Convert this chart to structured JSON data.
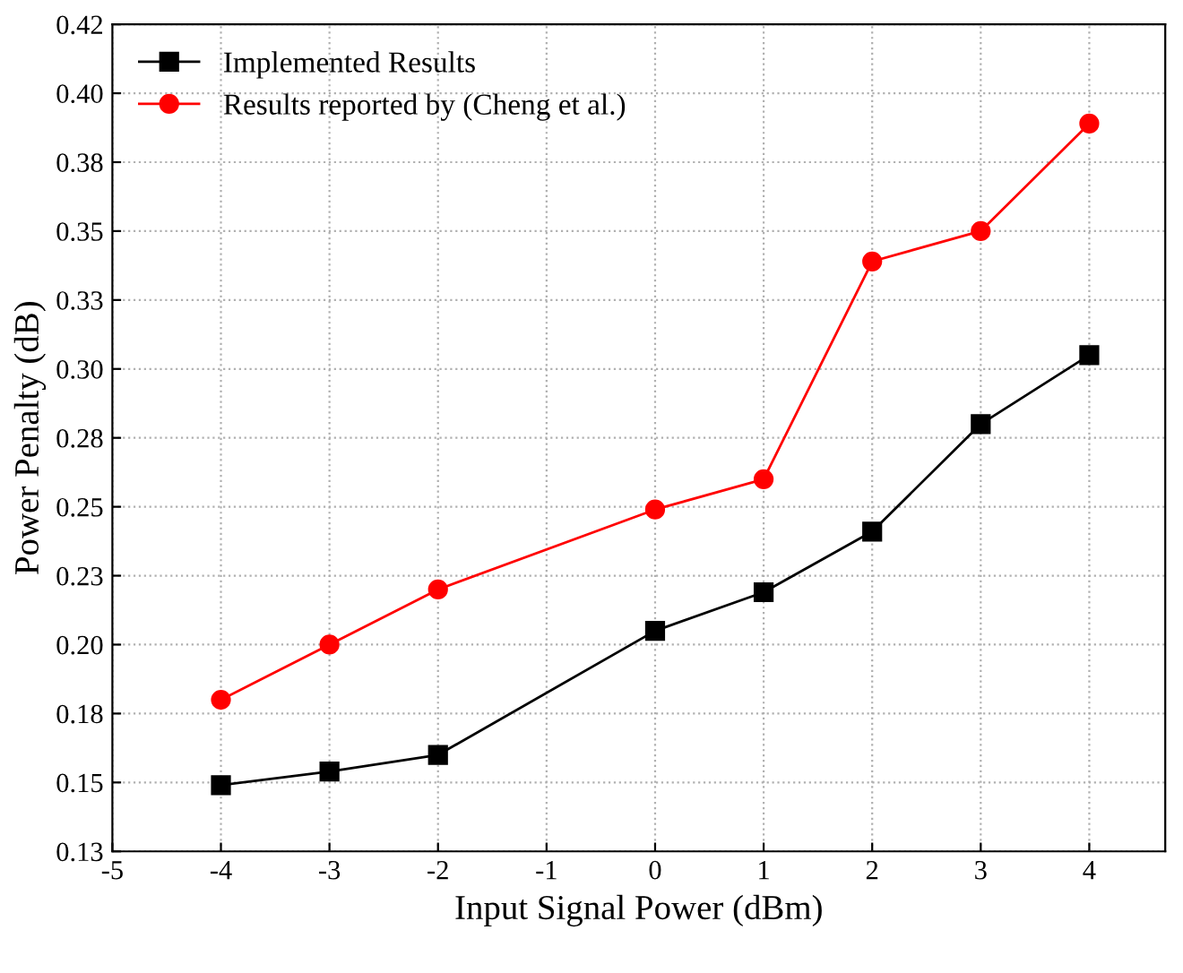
{
  "chart_data": {
    "type": "line",
    "xlabel": "Input Signal Power (dBm)",
    "ylabel": "Power Penalty (dB)",
    "x": [
      -4,
      -3,
      -2,
      0,
      1,
      2,
      3,
      4
    ],
    "series": [
      {
        "name": "Implemented Results",
        "color": "#000000",
        "marker": "square",
        "values": [
          0.149,
          0.154,
          0.16,
          0.205,
          0.219,
          0.241,
          0.28,
          0.305
        ]
      },
      {
        "name": "Results reported by (Cheng et al.)",
        "color": "#ff0000",
        "marker": "circle",
        "values": [
          0.18,
          0.2,
          0.22,
          0.249,
          0.26,
          0.339,
          0.35,
          0.389
        ]
      }
    ],
    "xlim": [
      -5,
      4.7
    ],
    "xticks": [
      -5,
      -4,
      -3,
      -2,
      -1,
      0,
      1,
      2,
      3,
      4
    ],
    "ylim": [
      0.125,
      0.425
    ],
    "yticks": [
      {
        "value": 0.125,
        "label": "0.13"
      },
      {
        "value": 0.15,
        "label": "0.15"
      },
      {
        "value": 0.175,
        "label": "0.18"
      },
      {
        "value": 0.2,
        "label": "0.20"
      },
      {
        "value": 0.225,
        "label": "0.23"
      },
      {
        "value": 0.25,
        "label": "0.25"
      },
      {
        "value": 0.275,
        "label": "0.28"
      },
      {
        "value": 0.3,
        "label": "0.30"
      },
      {
        "value": 0.325,
        "label": "0.33"
      },
      {
        "value": 0.35,
        "label": "0.35"
      },
      {
        "value": 0.375,
        "label": "0.38"
      },
      {
        "value": 0.4,
        "label": "0.40"
      },
      {
        "value": 0.425,
        "label": "0.42"
      }
    ],
    "grid": true,
    "legend": "top left",
    "line_style": "solid"
  }
}
